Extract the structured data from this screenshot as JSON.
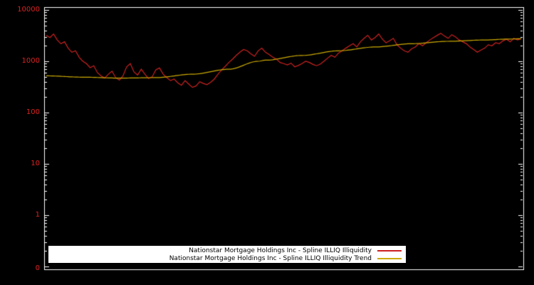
{
  "chart_data": {
    "type": "line",
    "title": "",
    "y_scale": "log",
    "yticks": [
      "10000",
      "1000",
      "100",
      "10",
      "1",
      "0"
    ],
    "colors": {
      "background": "#000000",
      "border": "#ffffff",
      "axis_label": "#dd2222",
      "legend_background": "#ffffff",
      "legend_text": "#000000"
    },
    "series": [
      {
        "name": "Nationstar Mortgage Holdings Inc - Spline ILLIQ Illiquidity",
        "color": "#cc2222",
        "values": [
          3200,
          2900,
          3400,
          2600,
          2200,
          2400,
          1800,
          1500,
          1600,
          1200,
          1000,
          900,
          750,
          820,
          600,
          520,
          470,
          560,
          640,
          480,
          430,
          520,
          780,
          900,
          620,
          540,
          700,
          560,
          460,
          500,
          680,
          740,
          560,
          480,
          420,
          450,
          380,
          340,
          420,
          360,
          310,
          330,
          400,
          370,
          350,
          390,
          450,
          560,
          680,
          800,
          950,
          1100,
          1300,
          1500,
          1700,
          1600,
          1400,
          1250,
          1600,
          1800,
          1500,
          1350,
          1200,
          1100,
          950,
          900,
          850,
          920,
          780,
          830,
          900,
          1000,
          950,
          870,
          820,
          880,
          1000,
          1150,
          1300,
          1200,
          1450,
          1600,
          1800,
          2000,
          2200,
          1900,
          2400,
          2800,
          3200,
          2600,
          2900,
          3400,
          2700,
          2300,
          2500,
          2800,
          2100,
          1800,
          1600,
          1500,
          1750,
          1900,
          2200,
          2000,
          2300,
          2600,
          2900,
          3200,
          3500,
          3100,
          2800,
          3300,
          3000,
          2600,
          2400,
          2200,
          1900,
          1700,
          1500,
          1650,
          1800,
          2100,
          2000,
          2300,
          2200,
          2500,
          2700,
          2400,
          2800,
          2600,
          2750
        ]
      },
      {
        "name": "Nationstar Mortgage Holdings Inc - Spline ILLIQ Illiquidity Trend",
        "color": "#ccaa00",
        "control_points": [
          [
            0,
            520
          ],
          [
            10,
            490
          ],
          [
            20,
            470
          ],
          [
            30,
            480
          ],
          [
            40,
            560
          ],
          [
            50,
            700
          ],
          [
            58,
            1000
          ],
          [
            60,
            1050
          ],
          [
            70,
            1300
          ],
          [
            80,
            1600
          ],
          [
            90,
            1900
          ],
          [
            100,
            2200
          ],
          [
            110,
            2450
          ],
          [
            120,
            2600
          ],
          [
            126,
            2700
          ],
          [
            130,
            2750
          ]
        ]
      }
    ]
  }
}
